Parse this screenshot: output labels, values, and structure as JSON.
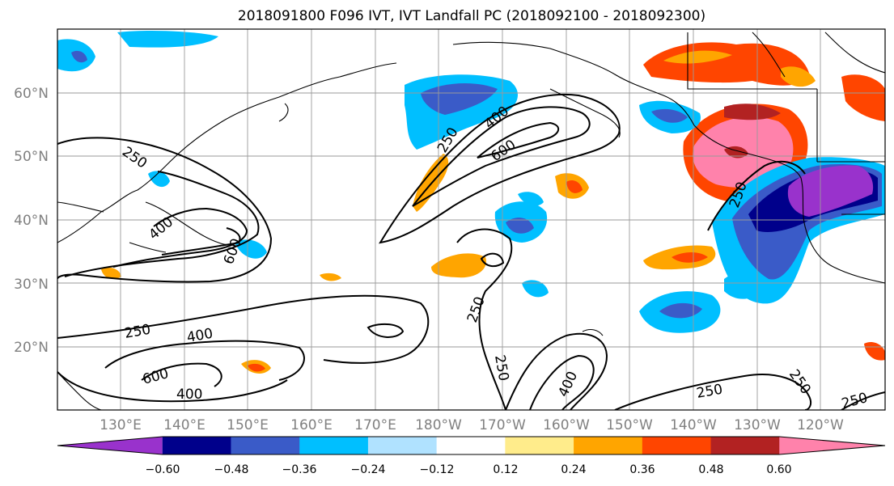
{
  "title": "2018091800 F096 IVT, IVT Landfall PC (2018092100 - 2018092300)",
  "lat_labels": [
    "60°N",
    "50°N",
    "40°N",
    "30°N",
    "20°N"
  ],
  "lon_labels": [
    "130°E",
    "140°E",
    "150°E",
    "160°E",
    "170°E",
    "180°W",
    "170°W",
    "160°W",
    "150°W",
    "140°W",
    "130°W",
    "120°W"
  ],
  "colorbar": {
    "colors": [
      "#9932cc",
      "#00008b",
      "#3a5bc8",
      "#00bfff",
      "#b0e2ff",
      "#ffffff",
      "#ffec8b",
      "#ffa500",
      "#ff4500",
      "#b22222",
      "#ff82ab"
    ],
    "tick_labels": [
      "−0.60",
      "−0.48",
      "−0.36",
      "−0.24",
      "−0.12",
      "0.12",
      "0.24",
      "0.36",
      "0.48",
      "0.60"
    ]
  },
  "contour_labels": [
    "250",
    "400",
    "600",
    "250",
    "400",
    "600",
    "250",
    "400",
    "600",
    "250",
    "400",
    "250",
    "400",
    "250",
    "250",
    "250",
    "250"
  ]
}
